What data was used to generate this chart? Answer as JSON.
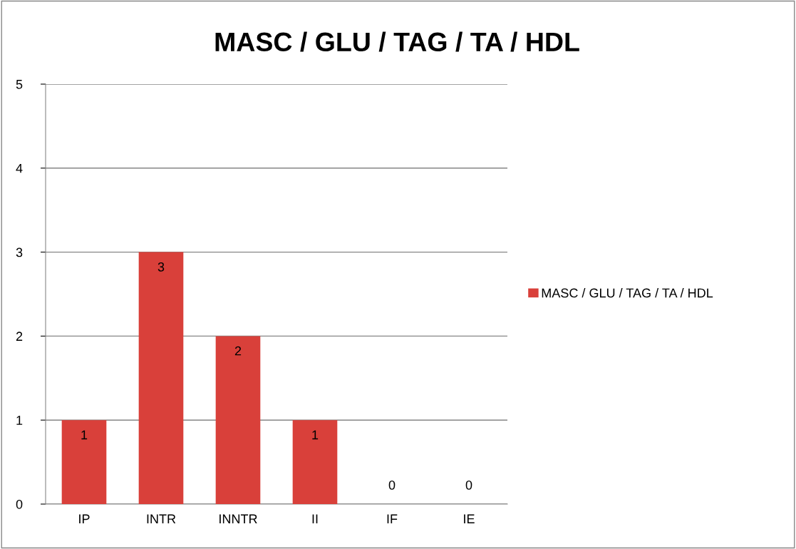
{
  "chart_data": {
    "type": "bar",
    "title": "MASC / GLU / TAG / TA / HDL",
    "categories": [
      "IP",
      "INTR",
      "INNTR",
      "II",
      "IF",
      "IE"
    ],
    "series": [
      {
        "name": "MASC / GLU / TAG / TA / HDL",
        "color": "#d9403a",
        "values": [
          1,
          3,
          2,
          1,
          0,
          0
        ]
      }
    ],
    "ylim": [
      0,
      5
    ],
    "yticks": [
      0,
      1,
      2,
      3,
      4,
      5
    ],
    "grid": "y",
    "legend": "right",
    "data_labels": true
  }
}
